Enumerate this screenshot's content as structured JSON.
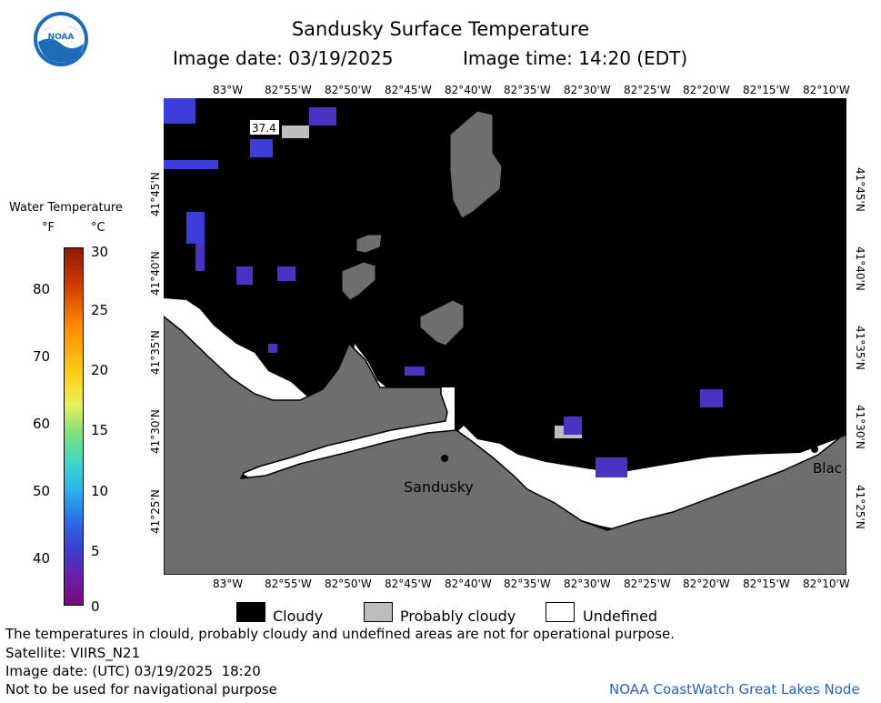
{
  "header": {
    "logo_text": "NOAA",
    "title": "Sandusky Surface Temperature",
    "image_date": "Image date: 03/19/2025",
    "image_time": "Image time: 14:20 (EDT)"
  },
  "map": {
    "lon_ticks": [
      "83°W",
      "82°55'W",
      "82°50'W",
      "82°45'W",
      "82°40'W",
      "82°35'W",
      "82°30'W",
      "82°25'W",
      "82°20'W",
      "82°15'W",
      "82°10'W"
    ],
    "lat_ticks": [
      "41°45'N",
      "41°40'N",
      "41°35'N",
      "41°30'N",
      "41°25'N"
    ],
    "places": {
      "sandusky": "Sandusky",
      "edge_place": "Blac"
    },
    "sample_value": "37.4",
    "colors": {
      "cloudy": "#000000",
      "probably_cloudy": "#bdbdbd",
      "undefined": "#ffffff",
      "land": "#6e6e6e",
      "cold_water": "#3c3cd8"
    }
  },
  "colorbar": {
    "title": "Water Temperature",
    "unit_f": "°F",
    "unit_c": "°C",
    "f_ticks": [
      "80",
      "70",
      "60",
      "50",
      "40"
    ],
    "c_ticks": [
      "30",
      "25",
      "20",
      "15",
      "10",
      "5",
      "0"
    ]
  },
  "legend": {
    "cloudy": "Cloudy",
    "probably_cloudy": "Probably cloudy",
    "undefined": "Undefined"
  },
  "footer": {
    "disclaimer": "The temperatures in clould, probably cloudy and undefined areas are not for operational purpose.",
    "satellite": "Satellite: VIIRS_N21",
    "utc_date": "Image date: (UTC) 03/19/2025  18:20",
    "nav_warning": "Not to be used for navigational purpose",
    "credit": "NOAA CoastWatch Great Lakes Node"
  }
}
